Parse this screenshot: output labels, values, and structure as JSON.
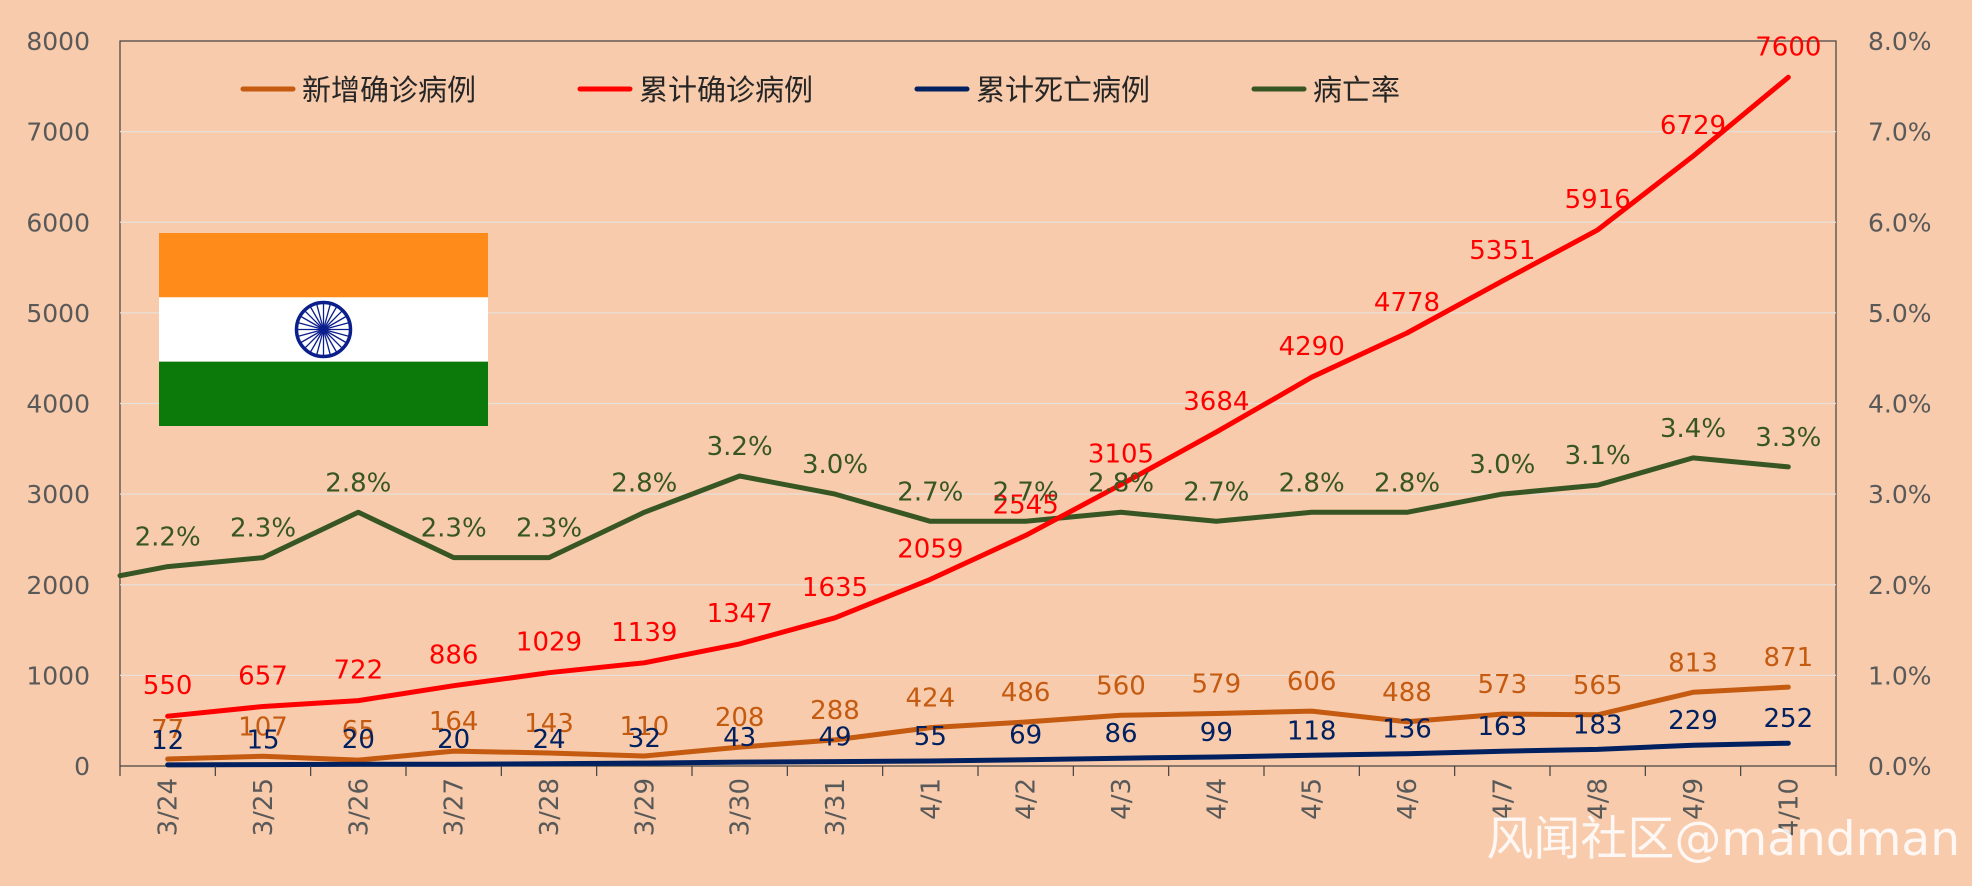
{
  "chart_data": {
    "type": "line",
    "categories": [
      "3/24",
      "3/25",
      "3/26",
      "3/27",
      "3/28",
      "3/29",
      "3/30",
      "3/31",
      "4/1",
      "4/2",
      "4/3",
      "4/4",
      "4/5",
      "4/6",
      "4/7",
      "4/8",
      "4/9",
      "4/10"
    ],
    "y_left": {
      "min": 0,
      "max": 8000,
      "ticks": [
        "0",
        "1000",
        "2000",
        "3000",
        "4000",
        "5000",
        "6000",
        "7000",
        "8000"
      ]
    },
    "y_right": {
      "min": 0,
      "max": 0.08,
      "ticks": [
        "0.0%",
        "1.0%",
        "2.0%",
        "3.0%",
        "4.0%",
        "5.0%",
        "6.0%",
        "7.0%",
        "8.0%"
      ]
    },
    "gridlines": true,
    "legend_position": "top",
    "series": [
      {
        "name": "新增确诊病例",
        "axis": "left",
        "color": "#C55A11",
        "values": [
          77,
          107,
          65,
          164,
          143,
          110,
          208,
          288,
          424,
          486,
          560,
          579,
          606,
          488,
          573,
          565,
          813,
          871
        ],
        "labels": [
          "77",
          "107",
          "65",
          "164",
          "143",
          "110",
          "208",
          "288",
          "424",
          "486",
          "560",
          "579",
          "606",
          "488",
          "573",
          "565",
          "813",
          "871"
        ]
      },
      {
        "name": "累计确诊病例",
        "axis": "left",
        "color": "#FF0000",
        "values": [
          550,
          657,
          722,
          886,
          1029,
          1139,
          1347,
          1635,
          2059,
          2545,
          3105,
          3684,
          4290,
          4778,
          5351,
          5916,
          6729,
          7600
        ],
        "labels": [
          "550",
          "657",
          "722",
          "886",
          "1029",
          "1139",
          "1347",
          "1635",
          "2059",
          "2545",
          "3105",
          "3684",
          "4290",
          "4778",
          "5351",
          "5916",
          "6729",
          "7600"
        ]
      },
      {
        "name": "累计死亡病例",
        "axis": "left",
        "color": "#002060",
        "values": [
          12,
          15,
          20,
          20,
          24,
          32,
          43,
          49,
          55,
          69,
          86,
          99,
          118,
          136,
          163,
          183,
          229,
          252
        ],
        "labels": [
          "12",
          "15",
          "20",
          "20",
          "24",
          "32",
          "43",
          "49",
          "55",
          "69",
          "86",
          "99",
          "118",
          "136",
          "163",
          "183",
          "229",
          "252"
        ]
      },
      {
        "name": "病亡率",
        "axis": "right",
        "color": "#375623",
        "start_value": 0.021,
        "values": [
          0.022,
          0.023,
          0.028,
          0.023,
          0.023,
          0.028,
          0.032,
          0.03,
          0.027,
          0.027,
          0.028,
          0.027,
          0.028,
          0.028,
          0.03,
          0.031,
          0.034,
          0.033
        ],
        "labels": [
          "2.2%",
          "2.3%",
          "2.8%",
          "2.3%",
          "2.3%",
          "2.8%",
          "3.2%",
          "3.0%",
          "2.7%",
          "2.7%",
          "2.8%",
          "2.7%",
          "2.8%",
          "2.8%",
          "3.0%",
          "3.1%",
          "3.4%",
          "3.3%"
        ]
      }
    ]
  },
  "flag": {
    "name": "india-flag-icon",
    "colors": {
      "saffron": "#FF8C1A",
      "white": "#FFFFFF",
      "green": "#0B7A0B",
      "chakra": "#0A1E8C"
    }
  },
  "watermark": "风闻社区@mandman"
}
